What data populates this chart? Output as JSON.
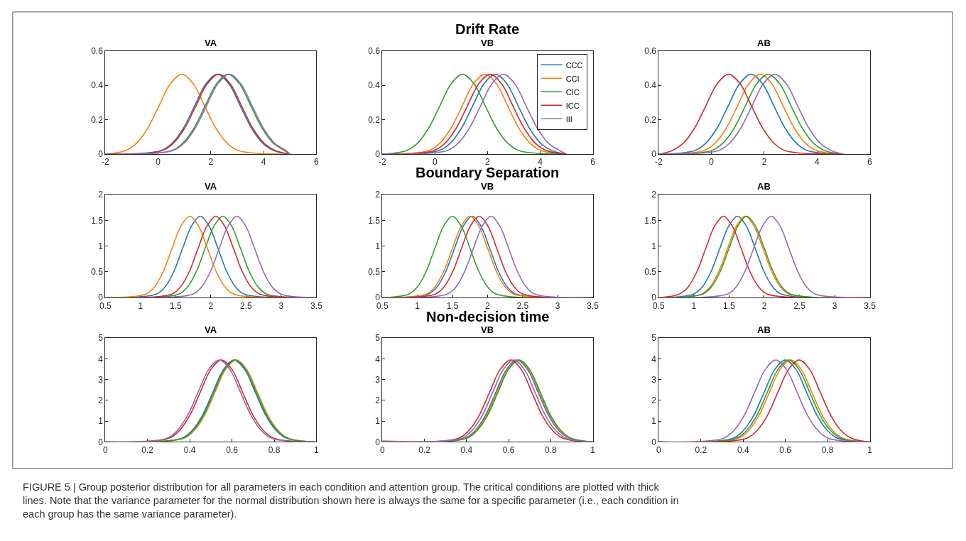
{
  "chart_data": [
    {
      "type": "line",
      "title": "VA",
      "xlim": [
        -2,
        6
      ],
      "xticks": [
        -2,
        0,
        2,
        4,
        6
      ],
      "ylim": [
        0,
        0.6
      ],
      "yticks": [
        0,
        0.2,
        0.4,
        0.6
      ],
      "grid": false,
      "legend": false,
      "marker": "none",
      "line_style": "solid",
      "series": [
        {
          "color": "#1f77b4",
          "x": [
            -2,
            0.1,
            0.53,
            0.96,
            1.39,
            1.82,
            2.25,
            2.68,
            3.11,
            3.54,
            3.97,
            4.4,
            5
          ],
          "values": [
            0,
            0.02,
            0.063,
            0.151,
            0.282,
            0.41,
            0.465,
            0.41,
            0.282,
            0.151,
            0.063,
            0.02,
            0
          ]
        },
        {
          "color": "#ff7f0e",
          "x": [
            -2,
            -1.25,
            -0.82,
            -0.39,
            0.04,
            0.47,
            0.9,
            1.33,
            1.76,
            2.19,
            2.62,
            3.05,
            5
          ],
          "values": [
            0,
            0.02,
            0.063,
            0.151,
            0.282,
            0.41,
            0.465,
            0.41,
            0.282,
            0.151,
            0.063,
            0.02,
            0
          ]
        },
        {
          "color": "#2ca02c",
          "x": [
            -2,
            0.5,
            0.93,
            1.36,
            1.79,
            2.22,
            2.65,
            3.08,
            3.51,
            3.94,
            4.37,
            4.8,
            5
          ],
          "values": [
            0,
            0.02,
            0.063,
            0.151,
            0.282,
            0.41,
            0.465,
            0.41,
            0.282,
            0.151,
            0.063,
            0.02,
            0
          ]
        },
        {
          "color": "#d62728",
          "x": [
            -2,
            0.15,
            0.58,
            1.01,
            1.44,
            1.87,
            2.3,
            2.73,
            3.16,
            3.59,
            4.02,
            4.45,
            5
          ],
          "values": [
            0,
            0.02,
            0.063,
            0.151,
            0.282,
            0.41,
            0.465,
            0.41,
            0.282,
            0.151,
            0.063,
            0.02,
            0
          ]
        },
        {
          "color": "#9467bd",
          "x": [
            -2,
            0.55,
            0.98,
            1.41,
            1.84,
            2.27,
            2.7,
            3.13,
            3.56,
            3.99,
            4.42,
            4.85,
            5
          ],
          "values": [
            0,
            0.02,
            0.063,
            0.151,
            0.282,
            0.41,
            0.465,
            0.41,
            0.282,
            0.151,
            0.063,
            0.02,
            0
          ]
        }
      ]
    },
    {
      "type": "line",
      "title": "VB",
      "subtitle": "Drift Rate",
      "xlim": [
        -2,
        6
      ],
      "xticks": [
        -2,
        0,
        2,
        4,
        6
      ],
      "ylim": [
        0,
        0.6
      ],
      "yticks": [
        0,
        0.2,
        0.4,
        0.6
      ],
      "grid": false,
      "legend": "top right",
      "marker": "none",
      "line_style": "solid",
      "series": [
        {
          "name": "CCC",
          "color": "#1f77b4",
          "x": [
            -2,
            0.15,
            0.58,
            1.01,
            1.44,
            1.87,
            2.3,
            2.73,
            3.16,
            3.59,
            4.02,
            4.45,
            5
          ],
          "values": [
            0,
            0.02,
            0.063,
            0.151,
            0.282,
            0.41,
            0.465,
            0.41,
            0.282,
            0.151,
            0.063,
            0.02,
            0
          ]
        },
        {
          "name": "CCI",
          "color": "#ff7f0e",
          "x": [
            -2,
            -0.25,
            0.18,
            0.61,
            1.04,
            1.47,
            1.9,
            2.33,
            2.76,
            3.19,
            3.62,
            4.05,
            5
          ],
          "values": [
            0,
            0.02,
            0.063,
            0.151,
            0.282,
            0.41,
            0.465,
            0.41,
            0.282,
            0.151,
            0.063,
            0.02,
            0
          ]
        },
        {
          "name": "CIC",
          "color": "#2ca02c",
          "x": [
            -2,
            -1.1,
            -0.67,
            -0.24,
            0.19,
            0.62,
            1.05,
            1.48,
            1.91,
            2.34,
            2.77,
            3.2,
            5
          ],
          "values": [
            0,
            0.02,
            0.063,
            0.151,
            0.282,
            0.41,
            0.465,
            0.41,
            0.282,
            0.151,
            0.063,
            0.02,
            0
          ]
        },
        {
          "name": "ICC",
          "color": "#d62728",
          "x": [
            -2,
            -0.05,
            0.38,
            0.81,
            1.24,
            1.67,
            2.1,
            2.53,
            2.96,
            3.39,
            3.82,
            4.25,
            5
          ],
          "values": [
            0,
            0.02,
            0.063,
            0.151,
            0.282,
            0.41,
            0.465,
            0.41,
            0.282,
            0.151,
            0.063,
            0.02,
            0
          ]
        },
        {
          "name": "III",
          "color": "#9467bd",
          "x": [
            -2,
            0.45,
            0.88,
            1.31,
            1.74,
            2.17,
            2.6,
            3.03,
            3.46,
            3.89,
            4.32,
            4.75,
            5
          ],
          "values": [
            0,
            0.02,
            0.063,
            0.151,
            0.282,
            0.41,
            0.465,
            0.41,
            0.282,
            0.151,
            0.063,
            0.02,
            0
          ]
        }
      ]
    },
    {
      "type": "line",
      "title": "AB",
      "xlim": [
        -2,
        6
      ],
      "xticks": [
        -2,
        0,
        2,
        4,
        6
      ],
      "ylim": [
        0,
        0.6
      ],
      "yticks": [
        0,
        0.2,
        0.4,
        0.6
      ],
      "grid": false,
      "legend": false,
      "marker": "none",
      "line_style": "solid",
      "series": [
        {
          "color": "#1f77b4",
          "x": [
            -2,
            -0.65,
            -0.22,
            0.21,
            0.64,
            1.07,
            1.5,
            1.93,
            2.36,
            2.79,
            3.22,
            3.65,
            5
          ],
          "values": [
            0,
            0.02,
            0.063,
            0.151,
            0.282,
            0.41,
            0.465,
            0.41,
            0.282,
            0.151,
            0.063,
            0.02,
            0
          ]
        },
        {
          "color": "#ff7f0e",
          "x": [
            -2,
            -0.3,
            0.13,
            0.56,
            0.99,
            1.42,
            1.85,
            2.28,
            2.71,
            3.14,
            3.57,
            4.0,
            5
          ],
          "values": [
            0,
            0.02,
            0.063,
            0.151,
            0.282,
            0.41,
            0.465,
            0.41,
            0.282,
            0.151,
            0.063,
            0.02,
            0
          ]
        },
        {
          "color": "#2ca02c",
          "x": [
            -2,
            0,
            0.43,
            0.86,
            1.29,
            1.72,
            2.15,
            2.58,
            3.01,
            3.44,
            3.87,
            4.3,
            5
          ],
          "values": [
            0,
            0.02,
            0.063,
            0.151,
            0.282,
            0.41,
            0.465,
            0.41,
            0.282,
            0.151,
            0.063,
            0.02,
            0
          ]
        },
        {
          "color": "#d62728",
          "x": [
            -2,
            -1.5,
            -1.07,
            -0.64,
            -0.21,
            0.22,
            0.65,
            1.08,
            1.51,
            1.94,
            2.37,
            2.8,
            5
          ],
          "values": [
            0,
            0.02,
            0.063,
            0.151,
            0.282,
            0.41,
            0.465,
            0.41,
            0.282,
            0.151,
            0.063,
            0.02,
            0
          ]
        },
        {
          "color": "#9467bd",
          "x": [
            -2,
            0.25,
            0.68,
            1.11,
            1.54,
            1.97,
            2.4,
            2.83,
            3.26,
            3.69,
            4.12,
            4.55,
            5
          ],
          "values": [
            0,
            0.02,
            0.063,
            0.151,
            0.282,
            0.41,
            0.465,
            0.41,
            0.282,
            0.151,
            0.063,
            0.02,
            0
          ]
        }
      ]
    },
    {
      "type": "line",
      "title": "VA",
      "xlim": [
        0.5,
        3.5
      ],
      "xticks": [
        0.5,
        1,
        1.5,
        2,
        2.5,
        3,
        3.5
      ],
      "ylim": [
        0,
        2
      ],
      "yticks": [
        0,
        0.5,
        1,
        1.5,
        2
      ],
      "grid": false,
      "legend": false,
      "marker": "none",
      "line_style": "solid",
      "series": [
        {
          "color": "#1f77b4",
          "x": [
            0.5,
            1.225,
            1.35,
            1.475,
            1.6,
            1.725,
            1.85,
            1.975,
            2.1,
            2.225,
            2.35,
            2.475,
            3.5
          ],
          "values": [
            0,
            0.07,
            0.21,
            0.51,
            0.96,
            1.39,
            1.58,
            1.39,
            0.96,
            0.51,
            0.21,
            0.07,
            0
          ]
        },
        {
          "color": "#ff7f0e",
          "x": [
            0.5,
            1.075,
            1.2,
            1.325,
            1.45,
            1.575,
            1.7,
            1.825,
            1.95,
            2.075,
            2.2,
            2.325,
            3.5
          ],
          "values": [
            0,
            0.07,
            0.21,
            0.51,
            0.96,
            1.39,
            1.58,
            1.39,
            0.96,
            0.51,
            0.21,
            0.07,
            0
          ]
        },
        {
          "color": "#2ca02c",
          "x": [
            0.5,
            1.545,
            1.67,
            1.795,
            1.92,
            2.045,
            2.17,
            2.295,
            2.42,
            2.545,
            2.67,
            2.795,
            3.5
          ],
          "values": [
            0,
            0.07,
            0.21,
            0.51,
            0.96,
            1.39,
            1.58,
            1.39,
            0.96,
            0.51,
            0.21,
            0.07,
            0
          ]
        },
        {
          "color": "#d62728",
          "x": [
            0.5,
            1.445,
            1.57,
            1.695,
            1.82,
            1.945,
            2.07,
            2.195,
            2.32,
            2.445,
            2.57,
            2.695,
            3.5
          ],
          "values": [
            0,
            0.07,
            0.21,
            0.51,
            0.96,
            1.39,
            1.58,
            1.39,
            0.96,
            0.51,
            0.21,
            0.07,
            0
          ]
        },
        {
          "color": "#9467bd",
          "x": [
            0.5,
            1.745,
            1.87,
            1.995,
            2.12,
            2.245,
            2.37,
            2.495,
            2.62,
            2.745,
            2.87,
            2.995,
            3.5
          ],
          "values": [
            0,
            0.07,
            0.21,
            0.51,
            0.96,
            1.39,
            1.58,
            1.39,
            0.96,
            0.51,
            0.21,
            0.07,
            0
          ]
        }
      ]
    },
    {
      "type": "line",
      "title": "VB",
      "subtitle": "Boundary Separation",
      "xlim": [
        0.5,
        3.5
      ],
      "xticks": [
        0.5,
        1,
        1.5,
        2,
        2.5,
        3,
        3.5
      ],
      "ylim": [
        0,
        2
      ],
      "yticks": [
        0,
        0.5,
        1,
        1.5,
        2
      ],
      "grid": false,
      "legend": false,
      "marker": "none",
      "line_style": "solid",
      "series": [
        {
          "color": "#1f77b4",
          "x": [
            0.5,
            1.155,
            1.28,
            1.405,
            1.53,
            1.655,
            1.78,
            1.905,
            2.03,
            2.155,
            2.28,
            2.405,
            3.5
          ],
          "values": [
            0,
            0.07,
            0.21,
            0.51,
            0.96,
            1.39,
            1.58,
            1.39,
            0.96,
            0.51,
            0.21,
            0.07,
            0
          ]
        },
        {
          "color": "#ff7f0e",
          "x": [
            0.5,
            1.125,
            1.25,
            1.375,
            1.5,
            1.625,
            1.75,
            1.875,
            2,
            2.125,
            2.25,
            2.375,
            3.5
          ],
          "values": [
            0,
            0.07,
            0.21,
            0.51,
            0.96,
            1.39,
            1.58,
            1.39,
            0.96,
            0.51,
            0.21,
            0.07,
            0
          ]
        },
        {
          "color": "#2ca02c",
          "x": [
            0.5,
            0.875,
            1,
            1.125,
            1.25,
            1.375,
            1.5,
            1.625,
            1.75,
            1.875,
            2,
            2.125,
            3.5
          ],
          "values": [
            0,
            0.07,
            0.21,
            0.51,
            0.96,
            1.39,
            1.58,
            1.39,
            0.96,
            0.51,
            0.21,
            0.07,
            0
          ]
        },
        {
          "color": "#d62728",
          "x": [
            0.5,
            1.255,
            1.38,
            1.505,
            1.63,
            1.755,
            1.88,
            2.005,
            2.13,
            2.255,
            2.38,
            2.505,
            3.5
          ],
          "values": [
            0,
            0.07,
            0.21,
            0.51,
            0.96,
            1.39,
            1.58,
            1.39,
            0.96,
            0.51,
            0.21,
            0.07,
            0
          ]
        },
        {
          "color": "#9467bd",
          "x": [
            0.5,
            1.425,
            1.55,
            1.675,
            1.8,
            1.925,
            2.05,
            2.175,
            2.3,
            2.425,
            2.55,
            2.675,
            3.5
          ],
          "values": [
            0,
            0.07,
            0.21,
            0.51,
            0.96,
            1.39,
            1.58,
            1.39,
            0.96,
            0.51,
            0.21,
            0.07,
            0
          ]
        }
      ]
    },
    {
      "type": "line",
      "title": "AB",
      "xlim": [
        0.5,
        3.5
      ],
      "xticks": [
        0.5,
        1,
        1.5,
        2,
        2.5,
        3,
        3.5
      ],
      "ylim": [
        0,
        2
      ],
      "yticks": [
        0,
        0.5,
        1,
        1.5,
        2
      ],
      "grid": false,
      "legend": false,
      "marker": "none",
      "line_style": "solid",
      "series": [
        {
          "color": "#1f77b4",
          "x": [
            0.5,
            0.995,
            1.12,
            1.245,
            1.37,
            1.495,
            1.62,
            1.745,
            1.87,
            1.995,
            2.12,
            2.245,
            3.5
          ],
          "values": [
            0,
            0.07,
            0.21,
            0.51,
            0.96,
            1.39,
            1.58,
            1.39,
            0.96,
            0.51,
            0.21,
            0.07,
            0
          ]
        },
        {
          "color": "#ff7f0e",
          "x": [
            0.5,
            1.105,
            1.23,
            1.355,
            1.48,
            1.605,
            1.73,
            1.855,
            1.98,
            2.105,
            2.23,
            2.355,
            3.5
          ],
          "values": [
            0,
            0.07,
            0.21,
            0.51,
            0.96,
            1.39,
            1.58,
            1.39,
            0.96,
            0.51,
            0.21,
            0.07,
            0
          ]
        },
        {
          "color": "#2ca02c",
          "x": [
            0.5,
            1.125,
            1.25,
            1.375,
            1.5,
            1.625,
            1.75,
            1.875,
            2,
            2.125,
            2.25,
            2.375,
            3.5
          ],
          "values": [
            0,
            0.07,
            0.21,
            0.51,
            0.96,
            1.39,
            1.58,
            1.39,
            0.96,
            0.51,
            0.21,
            0.07,
            0
          ]
        },
        {
          "color": "#d62728",
          "x": [
            0.5,
            0.795,
            0.92,
            1.045,
            1.17,
            1.295,
            1.42,
            1.545,
            1.67,
            1.795,
            1.92,
            2.045,
            3.5
          ],
          "values": [
            0,
            0.07,
            0.21,
            0.51,
            0.96,
            1.39,
            1.58,
            1.39,
            0.96,
            0.51,
            0.21,
            0.07,
            0
          ]
        },
        {
          "color": "#9467bd",
          "x": [
            0.5,
            1.475,
            1.6,
            1.725,
            1.85,
            1.975,
            2.1,
            2.225,
            2.35,
            2.475,
            2.6,
            2.725,
            3.5
          ],
          "values": [
            0,
            0.07,
            0.21,
            0.51,
            0.96,
            1.39,
            1.58,
            1.39,
            0.96,
            0.51,
            0.21,
            0.07,
            0
          ]
        }
      ]
    },
    {
      "type": "line",
      "title": "VA",
      "xlim": [
        0,
        1
      ],
      "xticks": [
        0,
        0.2,
        0.4,
        0.6,
        0.8,
        1
      ],
      "ylim": [
        0,
        5
      ],
      "yticks": [
        0,
        1,
        2,
        3,
        4,
        5
      ],
      "grid": false,
      "legend": false,
      "marker": "none",
      "line_style": "solid",
      "series": [
        {
          "color": "#1f77b4",
          "x": [
            0,
            0.36,
            0.41,
            0.46,
            0.51,
            0.56,
            0.61,
            0.66,
            0.71,
            0.76,
            0.81,
            0.86,
            1
          ],
          "values": [
            0,
            0.17,
            0.54,
            1.28,
            2.4,
            3.49,
            3.95,
            3.49,
            2.4,
            1.28,
            0.54,
            0.17,
            0
          ]
        },
        {
          "color": "#ff7f0e",
          "x": [
            0,
            0.37,
            0.42,
            0.47,
            0.52,
            0.57,
            0.62,
            0.67,
            0.72,
            0.77,
            0.82,
            0.87,
            1
          ],
          "values": [
            0,
            0.17,
            0.54,
            1.28,
            2.4,
            3.49,
            3.95,
            3.49,
            2.4,
            1.28,
            0.54,
            0.17,
            0
          ]
        },
        {
          "color": "#2ca02c",
          "x": [
            0,
            0.365,
            0.415,
            0.465,
            0.515,
            0.565,
            0.615,
            0.665,
            0.715,
            0.765,
            0.815,
            0.865,
            1
          ],
          "values": [
            0,
            0.17,
            0.54,
            1.28,
            2.4,
            3.49,
            3.95,
            3.49,
            2.4,
            1.28,
            0.54,
            0.17,
            0
          ]
        },
        {
          "color": "#d62728",
          "x": [
            0,
            0.3,
            0.35,
            0.4,
            0.45,
            0.5,
            0.55,
            0.6,
            0.65,
            0.7,
            0.75,
            0.8,
            1
          ],
          "values": [
            0,
            0.17,
            0.54,
            1.28,
            2.4,
            3.49,
            3.95,
            3.49,
            2.4,
            1.28,
            0.54,
            0.17,
            0
          ]
        },
        {
          "color": "#9467bd",
          "x": [
            0,
            0.29,
            0.34,
            0.39,
            0.44,
            0.49,
            0.54,
            0.59,
            0.64,
            0.69,
            0.74,
            0.79,
            1
          ],
          "values": [
            0,
            0.17,
            0.54,
            1.28,
            2.4,
            3.49,
            3.95,
            3.49,
            2.4,
            1.28,
            0.54,
            0.17,
            0
          ]
        }
      ]
    },
    {
      "type": "line",
      "title": "VB",
      "subtitle": "Non-decision time",
      "xlim": [
        0,
        1
      ],
      "xticks": [
        0,
        0.2,
        0.4,
        0.6,
        0.8,
        1
      ],
      "ylim": [
        0,
        5
      ],
      "yticks": [
        0,
        1,
        2,
        3,
        4,
        5
      ],
      "grid": false,
      "legend": false,
      "marker": "none",
      "line_style": "solid",
      "series": [
        {
          "color": "#1f77b4",
          "x": [
            0,
            0.39,
            0.44,
            0.49,
            0.54,
            0.59,
            0.64,
            0.69,
            0.74,
            0.79,
            0.84,
            0.89,
            1
          ],
          "values": [
            0,
            0.17,
            0.54,
            1.28,
            2.4,
            3.49,
            3.95,
            3.49,
            2.4,
            1.28,
            0.54,
            0.17,
            0
          ]
        },
        {
          "color": "#ff7f0e",
          "x": [
            0,
            0.395,
            0.445,
            0.495,
            0.545,
            0.595,
            0.645,
            0.695,
            0.745,
            0.795,
            0.845,
            0.895,
            1
          ],
          "values": [
            0,
            0.17,
            0.54,
            1.28,
            2.4,
            3.49,
            3.95,
            3.49,
            2.4,
            1.28,
            0.54,
            0.17,
            0
          ]
        },
        {
          "color": "#2ca02c",
          "x": [
            0,
            0.4,
            0.45,
            0.5,
            0.55,
            0.6,
            0.65,
            0.7,
            0.75,
            0.8,
            0.85,
            0.9,
            1
          ],
          "values": [
            0,
            0.17,
            0.54,
            1.28,
            2.4,
            3.49,
            3.95,
            3.49,
            2.4,
            1.28,
            0.54,
            0.17,
            0
          ]
        },
        {
          "color": "#d62728",
          "x": [
            0,
            0.36,
            0.41,
            0.46,
            0.51,
            0.56,
            0.61,
            0.66,
            0.71,
            0.76,
            0.81,
            0.86,
            1
          ],
          "values": [
            0,
            0.17,
            0.54,
            1.28,
            2.4,
            3.49,
            3.95,
            3.49,
            2.4,
            1.28,
            0.54,
            0.17,
            0
          ]
        },
        {
          "color": "#9467bd",
          "x": [
            0,
            0.375,
            0.425,
            0.475,
            0.525,
            0.575,
            0.625,
            0.675,
            0.725,
            0.775,
            0.825,
            0.875,
            1
          ],
          "values": [
            0.05,
            0.17,
            0.54,
            1.28,
            2.4,
            3.49,
            3.95,
            3.49,
            2.4,
            1.28,
            0.54,
            0.17,
            0
          ]
        }
      ]
    },
    {
      "type": "line",
      "title": "AB",
      "xlim": [
        0,
        1
      ],
      "xticks": [
        0,
        0.2,
        0.4,
        0.6,
        0.8,
        1
      ],
      "ylim": [
        0,
        5
      ],
      "yticks": [
        0,
        1,
        2,
        3,
        4,
        5
      ],
      "grid": false,
      "legend": false,
      "marker": "none",
      "line_style": "solid",
      "annotations": [
        "FIGURE 5 | Group posterior distribution for all parameters in each condition and attention group. The critical conditions are plotted with thick lines. Note that the variance parameter for the normal distribution shown here is always the same for a specific parameter (i.e., each condition in each group has the same variance parameter)."
      ],
      "series": [
        {
          "color": "#1f77b4",
          "x": [
            0,
            0.35,
            0.4,
            0.45,
            0.5,
            0.55,
            0.6,
            0.65,
            0.7,
            0.75,
            0.8,
            0.85,
            1
          ],
          "values": [
            0,
            0.17,
            0.54,
            1.28,
            2.4,
            3.49,
            3.95,
            3.49,
            2.4,
            1.28,
            0.54,
            0.17,
            0
          ]
        },
        {
          "color": "#ff7f0e",
          "x": [
            0,
            0.375,
            0.425,
            0.475,
            0.525,
            0.575,
            0.625,
            0.675,
            0.725,
            0.775,
            0.825,
            0.875,
            1
          ],
          "values": [
            0,
            0.17,
            0.54,
            1.28,
            2.4,
            3.49,
            3.95,
            3.49,
            2.4,
            1.28,
            0.54,
            0.17,
            0
          ]
        },
        {
          "color": "#2ca02c",
          "x": [
            0,
            0.365,
            0.415,
            0.465,
            0.515,
            0.565,
            0.615,
            0.665,
            0.715,
            0.765,
            0.815,
            0.865,
            1
          ],
          "values": [
            0,
            0.17,
            0.54,
            1.28,
            2.4,
            3.49,
            3.95,
            3.49,
            2.4,
            1.28,
            0.54,
            0.17,
            0
          ]
        },
        {
          "color": "#d62728",
          "x": [
            0,
            0.415,
            0.465,
            0.515,
            0.565,
            0.615,
            0.665,
            0.715,
            0.765,
            0.815,
            0.865,
            0.915,
            1
          ],
          "values": [
            0,
            0.17,
            0.54,
            1.28,
            2.4,
            3.49,
            3.95,
            3.49,
            2.4,
            1.28,
            0.54,
            0.17,
            0
          ]
        },
        {
          "color": "#9467bd",
          "x": [
            0,
            0.305,
            0.355,
            0.405,
            0.455,
            0.505,
            0.555,
            0.605,
            0.655,
            0.705,
            0.755,
            0.805,
            1
          ],
          "values": [
            0,
            0.17,
            0.54,
            1.28,
            2.4,
            3.49,
            3.95,
            3.49,
            2.4,
            1.28,
            0.54,
            0.17,
            0
          ]
        }
      ]
    }
  ]
}
